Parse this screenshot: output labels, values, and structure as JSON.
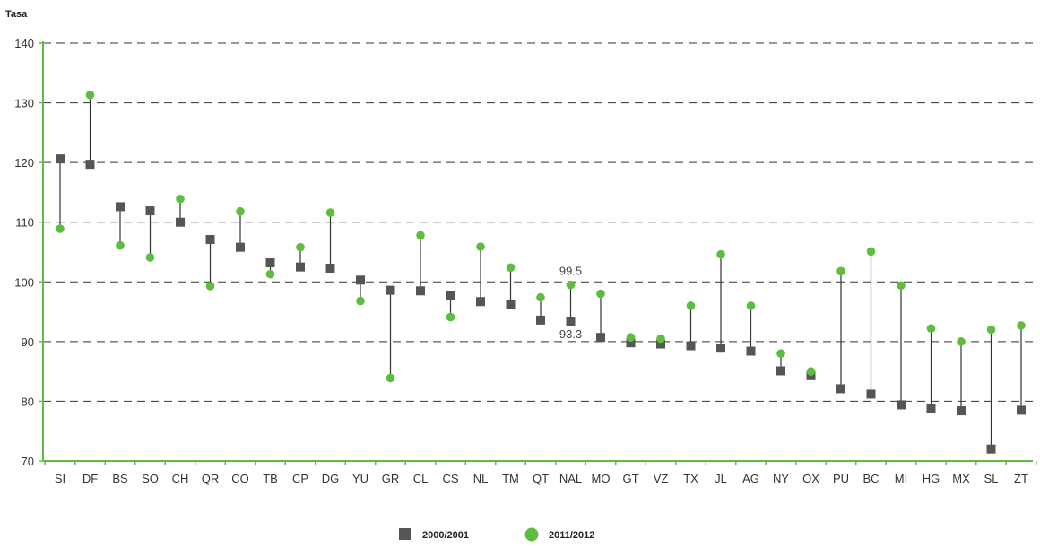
{
  "chart_data": {
    "type": "scatter",
    "ylabel": "Tasa",
    "ylim": [
      70,
      140
    ],
    "yticks": [
      70,
      80,
      90,
      100,
      110,
      120,
      130,
      140
    ],
    "grid": true,
    "legend_placement": "bottom-center",
    "categories": [
      "SI",
      "DF",
      "BS",
      "SO",
      "CH",
      "QR",
      "CO",
      "TB",
      "CP",
      "DG",
      "YU",
      "GR",
      "CL",
      "CS",
      "NL",
      "TM",
      "QT",
      "NAL",
      "MO",
      "GT",
      "VZ",
      "TX",
      "JL",
      "AG",
      "NY",
      "OX",
      "PU",
      "BC",
      "MI",
      "HG",
      "MX",
      "SL",
      "ZT"
    ],
    "series": [
      {
        "name": "2000/2001",
        "marker": "square",
        "color": "#555555",
        "values": [
          120.6,
          119.7,
          112.6,
          111.9,
          110.0,
          107.1,
          105.8,
          103.2,
          102.5,
          102.3,
          100.3,
          98.6,
          98.5,
          97.7,
          96.7,
          96.2,
          93.6,
          93.3,
          90.7,
          89.8,
          89.6,
          89.3,
          88.9,
          88.4,
          85.1,
          84.3,
          82.1,
          81.2,
          79.4,
          78.8,
          78.4,
          72.0,
          78.5
        ]
      },
      {
        "name": "2011/2012",
        "marker": "circle",
        "color": "#5cbd3f",
        "values": [
          108.9,
          131.3,
          106.1,
          104.1,
          113.9,
          99.3,
          111.8,
          101.3,
          105.8,
          111.6,
          96.8,
          83.9,
          107.8,
          94.1,
          105.9,
          102.4,
          97.4,
          99.5,
          98.0,
          90.7,
          90.5,
          96.0,
          104.6,
          96.0,
          88.0,
          85.0,
          101.8,
          105.1,
          99.4,
          92.2,
          90.0,
          92.0,
          92.7
        ]
      }
    ],
    "annotations": [
      {
        "category": "NAL",
        "series": "2011/2012",
        "text": "99.5"
      },
      {
        "category": "NAL",
        "series": "2000/2001",
        "text": "93.3"
      }
    ]
  },
  "colors": {
    "axis": "#5cbd3f",
    "grid": "#333333",
    "connector": "#333333"
  }
}
